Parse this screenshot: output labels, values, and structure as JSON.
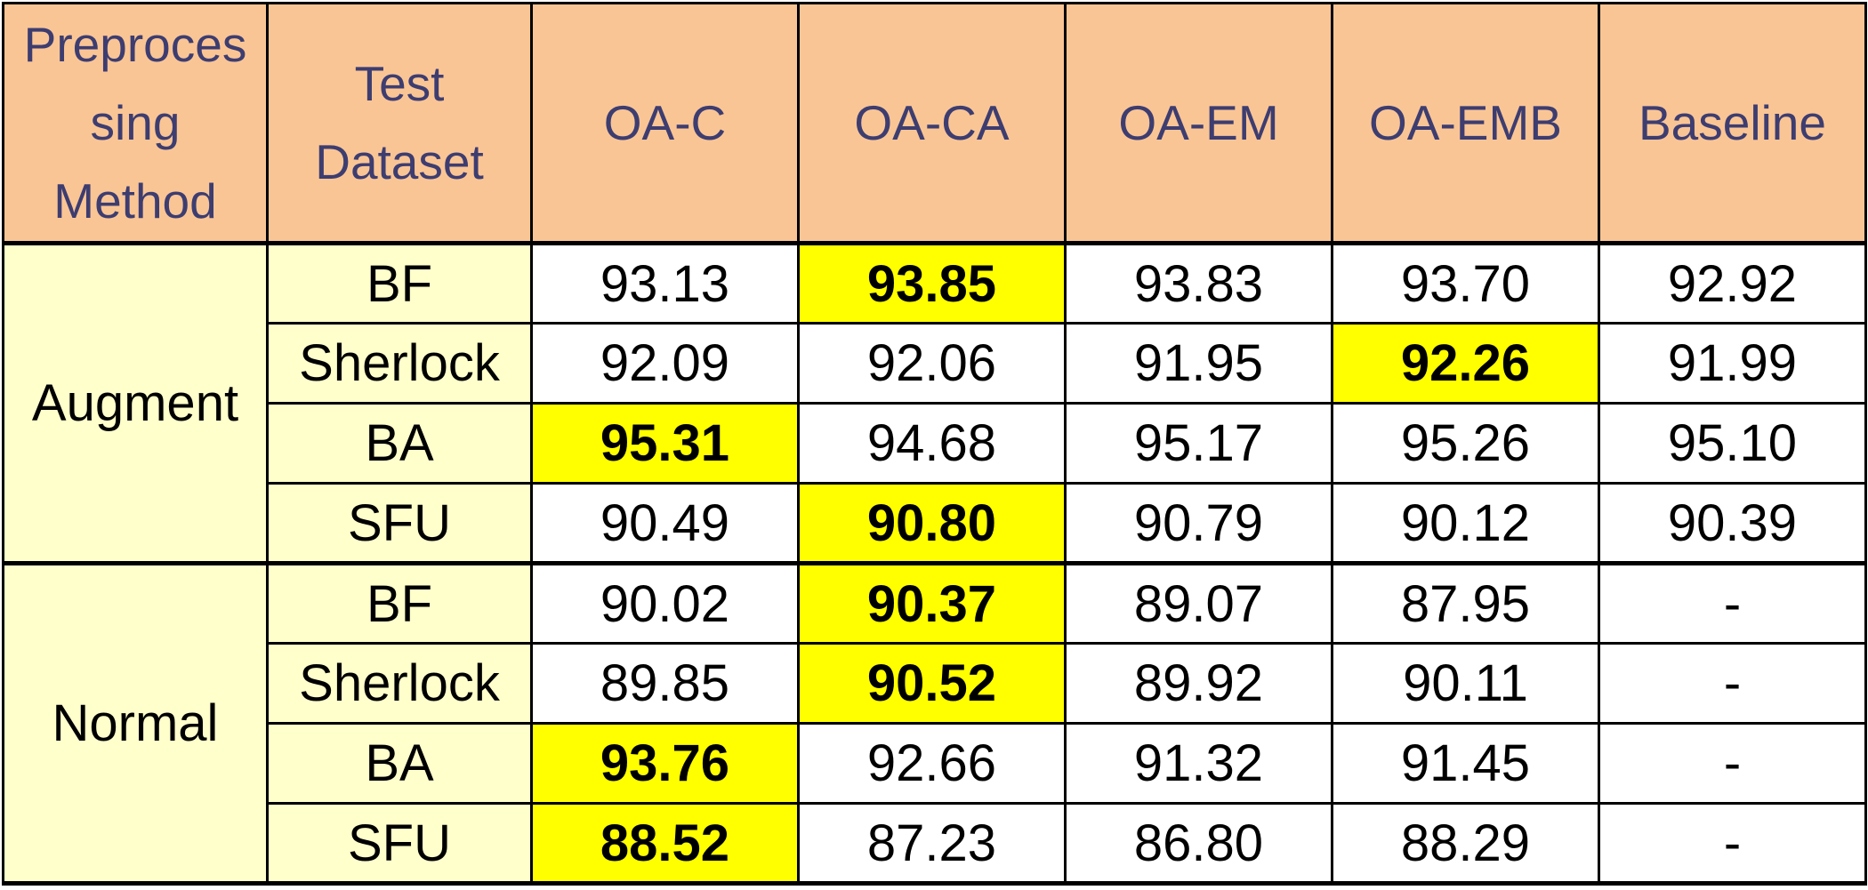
{
  "chart_data": {
    "type": "table",
    "columns": [
      "Preproces sing Method",
      "Test Dataset",
      "OA-C",
      "OA-CA",
      "OA-EM",
      "OA-EMB",
      "Baseline"
    ],
    "header": {
      "method": [
        "Preproces",
        "sing",
        "Method"
      ],
      "dataset": [
        "Test",
        "Dataset"
      ],
      "models": [
        "OA-C",
        "OA-CA",
        "OA-EM",
        "OA-EMB",
        "Baseline"
      ]
    },
    "groups": [
      {
        "method": "Augment",
        "rows": [
          {
            "dataset": "BF",
            "values": [
              "93.13",
              "93.85",
              "93.83",
              "93.70",
              "92.92"
            ],
            "best": 1
          },
          {
            "dataset": "Sherlock",
            "values": [
              "92.09",
              "92.06",
              "91.95",
              "92.26",
              "91.99"
            ],
            "best": 3
          },
          {
            "dataset": "BA",
            "values": [
              "95.31",
              "94.68",
              "95.17",
              "95.26",
              "95.10"
            ],
            "best": 0
          },
          {
            "dataset": "SFU",
            "values": [
              "90.49",
              "90.80",
              "90.79",
              "90.12",
              "90.39"
            ],
            "best": 1
          }
        ]
      },
      {
        "method": "Normal",
        "rows": [
          {
            "dataset": "BF",
            "values": [
              "90.02",
              "90.37",
              "89.07",
              "87.95",
              "-"
            ],
            "best": 1
          },
          {
            "dataset": "Sherlock",
            "values": [
              "89.85",
              "90.52",
              "89.92",
              "90.11",
              "-"
            ],
            "best": 1
          },
          {
            "dataset": "BA",
            "values": [
              "93.76",
              "92.66",
              "91.32",
              "91.45",
              "-"
            ],
            "best": 0
          },
          {
            "dataset": "SFU",
            "values": [
              "88.52",
              "87.23",
              "86.80",
              "88.29",
              "-"
            ],
            "best": 0
          }
        ]
      }
    ],
    "colors": {
      "header_bg": "#FAC595",
      "header_text": "#3D3D70",
      "label_bg": "#FFFFCC",
      "highlight": "#FFFF00"
    }
  }
}
